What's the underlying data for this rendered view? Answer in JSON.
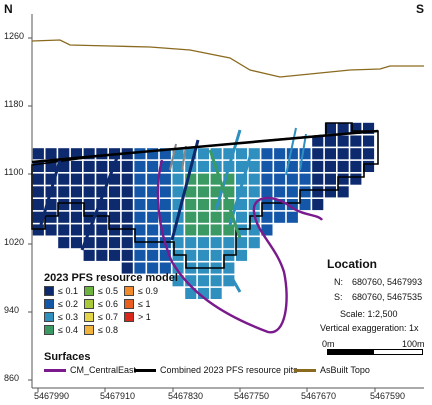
{
  "header": {
    "north": "N",
    "south": "S"
  },
  "axes": {
    "y_labels": [
      "1260",
      "1180",
      "1100",
      "1020",
      "940",
      "860"
    ],
    "x_labels": [
      "5467990",
      "5467910",
      "5467830",
      "5467750",
      "5467670",
      "5467590"
    ]
  },
  "legend": {
    "title": "2023 PFS resource model",
    "items": [
      {
        "label": "≤ 0.1",
        "color": "#0d2a6e"
      },
      {
        "label": "≤ 0.2",
        "color": "#1457a8"
      },
      {
        "label": "≤ 0.3",
        "color": "#2f8fbf"
      },
      {
        "label": "≤ 0.4",
        "color": "#3b9a64"
      },
      {
        "label": "≤ 0.5",
        "color": "#6db33f"
      },
      {
        "label": "≤ 0.6",
        "color": "#a9c93a"
      },
      {
        "label": "≤ 0.7",
        "color": "#e3d44a"
      },
      {
        "label": "≤ 0.8",
        "color": "#f0b43c"
      },
      {
        "label": "≤ 0.9",
        "color": "#f08a2a"
      },
      {
        "label": "≤ 1",
        "color": "#e8601f"
      },
      {
        "label": "> 1",
        "color": "#d8281c"
      }
    ]
  },
  "surfaces": {
    "title": "Surfaces",
    "items": [
      {
        "label": "CM_CentralEast",
        "color": "#7a1a8c"
      },
      {
        "label": "Combined 2023 PFS resource pits",
        "color": "#000000"
      },
      {
        "label": "AsBuilt Topo",
        "color": "#8a6a1e"
      }
    ]
  },
  "location": {
    "title": "Location",
    "n_label": "N:",
    "n_value": "680760, 5467993",
    "s_label": "S:",
    "s_value": "680760, 5467535",
    "scale": "Scale: 1:2,500",
    "vertical_exaggeration": "Vertical exaggeration: 1x",
    "scalebar_start": "0m",
    "scalebar_end": "100m"
  }
}
